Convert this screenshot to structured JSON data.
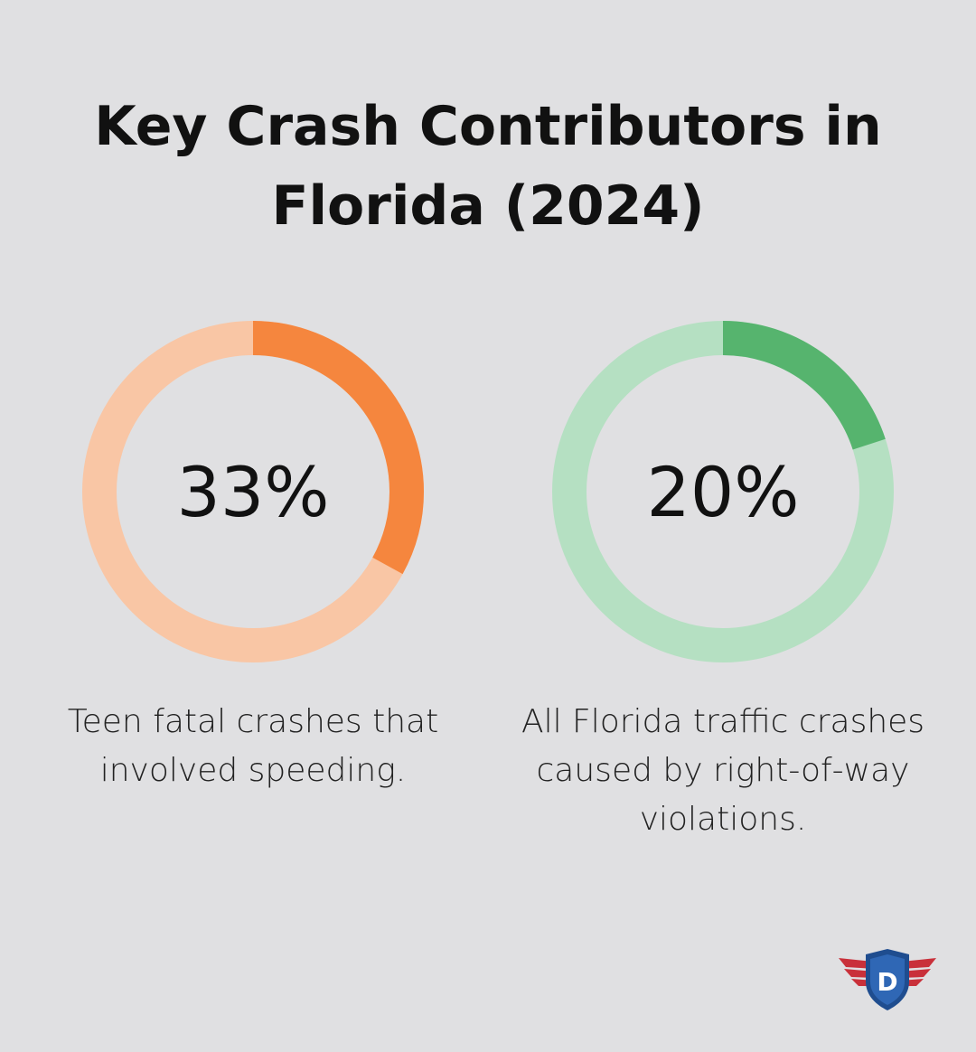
{
  "title_lines": [
    "Key Crash Contributors in",
    "Florida (2024)"
  ],
  "chart_data": [
    {
      "type": "pie",
      "variant": "donut",
      "value": 33,
      "label": "33%",
      "caption": "Teen fatal crashes that involved speeding.",
      "colors": {
        "filled": "#f5863e",
        "track": "#f9c6a5"
      }
    },
    {
      "type": "pie",
      "variant": "donut",
      "value": 20,
      "label": "20%",
      "caption": "All Florida traffic crashes caused by right-of-way violations.",
      "colors": {
        "filled": "#56b46e",
        "track": "#b5e0c2"
      }
    }
  ],
  "logo": {
    "icon": "shield-wings-logo",
    "letter": "D",
    "colors": {
      "wings": "#c9303a",
      "shield": "#1f4d8f",
      "shield_inner": "#2f67b5",
      "letter": "#ffffff"
    }
  }
}
